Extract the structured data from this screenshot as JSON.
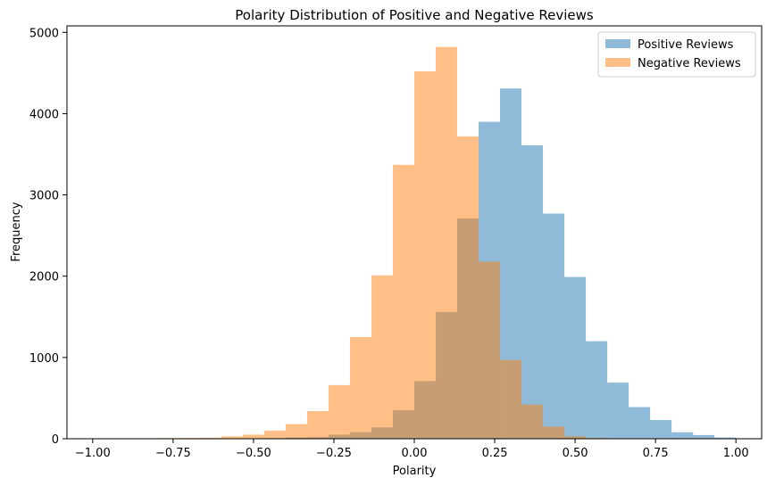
{
  "chart_data": {
    "type": "histogram",
    "title": "Polarity Distribution of Positive and Negative Reviews",
    "xlabel": "Polarity",
    "ylabel": "Frequency",
    "xlim": [
      -1.08,
      1.08
    ],
    "ylim": [
      0,
      5080
    ],
    "xticks": [
      -1.0,
      -0.75,
      -0.5,
      -0.25,
      0.0,
      0.25,
      0.5,
      0.75,
      1.0
    ],
    "xtick_labels": [
      "−1.00",
      "−0.75",
      "−0.50",
      "−0.25",
      "0.00",
      "0.25",
      "0.50",
      "0.75",
      "1.00"
    ],
    "yticks": [
      0,
      1000,
      2000,
      3000,
      4000,
      5000
    ],
    "ytick_labels": [
      "0",
      "1000",
      "2000",
      "3000",
      "4000",
      "5000"
    ],
    "bar_opacity": 0.5,
    "legend_position": "top-right",
    "series": [
      {
        "name": "Positive Reviews",
        "color": "#1f77b4",
        "bins": [
          {
            "x0": -1.0,
            "x1": -0.9333,
            "value": 0
          },
          {
            "x0": -0.9333,
            "x1": -0.8667,
            "value": 0
          },
          {
            "x0": -0.8667,
            "x1": -0.8,
            "value": 0
          },
          {
            "x0": -0.8,
            "x1": -0.7333,
            "value": 0
          },
          {
            "x0": -0.7333,
            "x1": -0.6667,
            "value": 0
          },
          {
            "x0": -0.6667,
            "x1": -0.6,
            "value": 0
          },
          {
            "x0": -0.6,
            "x1": -0.5333,
            "value": 2
          },
          {
            "x0": -0.5333,
            "x1": -0.4667,
            "value": 4
          },
          {
            "x0": -0.4667,
            "x1": -0.4,
            "value": 8
          },
          {
            "x0": -0.4,
            "x1": -0.3333,
            "value": 15
          },
          {
            "x0": -0.3333,
            "x1": -0.2667,
            "value": 20
          },
          {
            "x0": -0.2667,
            "x1": -0.2,
            "value": 50
          },
          {
            "x0": -0.2,
            "x1": -0.1333,
            "value": 80
          },
          {
            "x0": -0.1333,
            "x1": -0.0667,
            "value": 140
          },
          {
            "x0": -0.0667,
            "x1": 0.0,
            "value": 350
          },
          {
            "x0": 0.0,
            "x1": 0.0667,
            "value": 710
          },
          {
            "x0": 0.0667,
            "x1": 0.1333,
            "value": 1560
          },
          {
            "x0": 0.1333,
            "x1": 0.2,
            "value": 2710
          },
          {
            "x0": 0.2,
            "x1": 0.2667,
            "value": 3900
          },
          {
            "x0": 0.2667,
            "x1": 0.3333,
            "value": 4310
          },
          {
            "x0": 0.3333,
            "x1": 0.4,
            "value": 3610
          },
          {
            "x0": 0.4,
            "x1": 0.4667,
            "value": 2770
          },
          {
            "x0": 0.4667,
            "x1": 0.5333,
            "value": 1990
          },
          {
            "x0": 0.5333,
            "x1": 0.6,
            "value": 1200
          },
          {
            "x0": 0.6,
            "x1": 0.6667,
            "value": 690
          },
          {
            "x0": 0.6667,
            "x1": 0.7333,
            "value": 390
          },
          {
            "x0": 0.7333,
            "x1": 0.8,
            "value": 230
          },
          {
            "x0": 0.8,
            "x1": 0.8667,
            "value": 80
          },
          {
            "x0": 0.8667,
            "x1": 0.9333,
            "value": 45
          },
          {
            "x0": 0.9333,
            "x1": 1.0,
            "value": 15
          }
        ]
      },
      {
        "name": "Negative Reviews",
        "color": "#ff7f0e",
        "bins": [
          {
            "x0": -0.9333,
            "x1": -0.8667,
            "value": 0
          },
          {
            "x0": -0.8667,
            "x1": -0.8,
            "value": 5
          },
          {
            "x0": -0.8,
            "x1": -0.7333,
            "value": 8
          },
          {
            "x0": -0.7333,
            "x1": -0.6667,
            "value": 10
          },
          {
            "x0": -0.6667,
            "x1": -0.6,
            "value": 12
          },
          {
            "x0": -0.6,
            "x1": -0.5333,
            "value": 30
          },
          {
            "x0": -0.5333,
            "x1": -0.4667,
            "value": 50
          },
          {
            "x0": -0.4667,
            "x1": -0.4,
            "value": 100
          },
          {
            "x0": -0.4,
            "x1": -0.3333,
            "value": 180
          },
          {
            "x0": -0.3333,
            "x1": -0.2667,
            "value": 340
          },
          {
            "x0": -0.2667,
            "x1": -0.2,
            "value": 660
          },
          {
            "x0": -0.2,
            "x1": -0.1333,
            "value": 1250
          },
          {
            "x0": -0.1333,
            "x1": -0.0667,
            "value": 2010
          },
          {
            "x0": -0.0667,
            "x1": 0.0,
            "value": 3370
          },
          {
            "x0": 0.0,
            "x1": 0.0667,
            "value": 4520
          },
          {
            "x0": 0.0667,
            "x1": 0.1333,
            "value": 4820
          },
          {
            "x0": 0.1333,
            "x1": 0.2,
            "value": 3720
          },
          {
            "x0": 0.2,
            "x1": 0.2667,
            "value": 2180
          },
          {
            "x0": 0.2667,
            "x1": 0.3333,
            "value": 970
          },
          {
            "x0": 0.3333,
            "x1": 0.4,
            "value": 420
          },
          {
            "x0": 0.4,
            "x1": 0.4667,
            "value": 150
          },
          {
            "x0": 0.4667,
            "x1": 0.5333,
            "value": 30
          },
          {
            "x0": 0.5333,
            "x1": 0.6,
            "value": 10
          }
        ]
      }
    ]
  }
}
